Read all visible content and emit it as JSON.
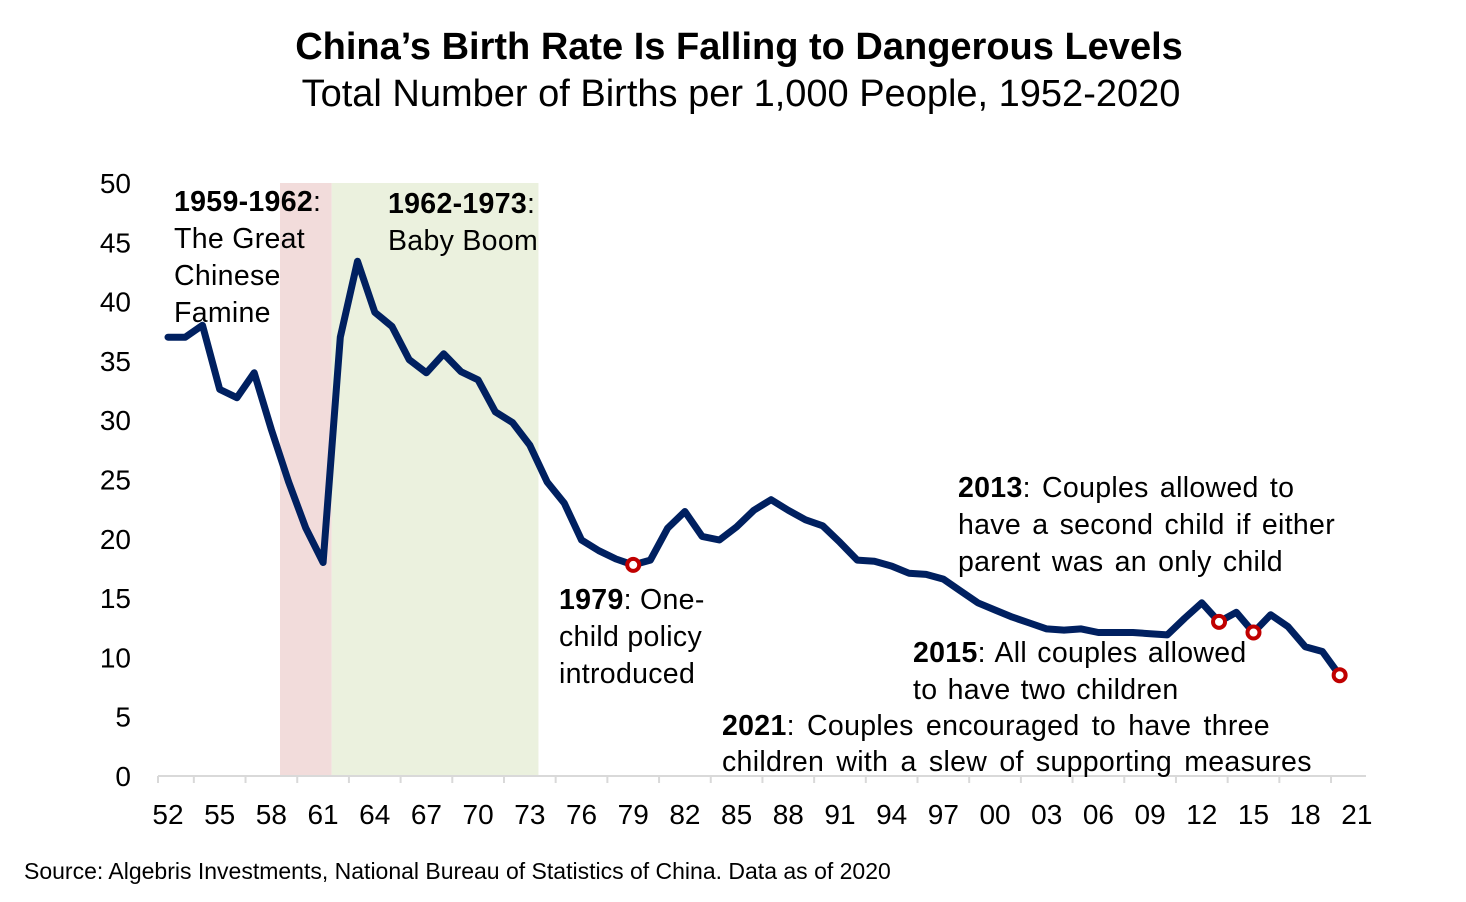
{
  "chart_data": {
    "type": "line",
    "title": "China’s Birth Rate Is Falling to Dangerous Levels",
    "subtitle": "Total Number of Births per 1,000 People, 1952-2020",
    "xlabel": "",
    "ylabel": "",
    "ylim": [
      0,
      50
    ],
    "yticks": [
      0,
      5,
      10,
      15,
      20,
      25,
      30,
      35,
      40,
      45,
      50
    ],
    "xlim": [
      1952,
      2021
    ],
    "xtick_years": [
      1952,
      1955,
      1958,
      1961,
      1964,
      1967,
      1970,
      1973,
      1976,
      1979,
      1982,
      1985,
      1988,
      1991,
      1994,
      1997,
      2000,
      2003,
      2006,
      2009,
      2012,
      2015,
      2018,
      2021
    ],
    "xtick_labels": [
      "52",
      "55",
      "58",
      "61",
      "64",
      "67",
      "70",
      "73",
      "76",
      "79",
      "82",
      "85",
      "88",
      "91",
      "94",
      "97",
      "00",
      "03",
      "06",
      "09",
      "12",
      "15",
      "18",
      "21"
    ],
    "grid": false,
    "line_color": "#002060",
    "series": [
      {
        "x": [
          1952,
          1953,
          1954,
          1955,
          1956,
          1957,
          1958,
          1959,
          1960,
          1961,
          1962,
          1963,
          1964,
          1965,
          1966,
          1967,
          1968,
          1969,
          1970,
          1971,
          1972,
          1973,
          1974,
          1975,
          1976,
          1977,
          1978,
          1979,
          1980,
          1981,
          1982,
          1983,
          1984,
          1985,
          1986,
          1987,
          1988,
          1989,
          1990,
          1991,
          1992,
          1993,
          1994,
          1995,
          1996,
          1997,
          1998,
          1999,
          2000,
          2001,
          2002,
          2003,
          2004,
          2005,
          2006,
          2007,
          2008,
          2009,
          2010,
          2011,
          2012,
          2013,
          2014,
          2015,
          2016,
          2017,
          2018,
          2019,
          2020
        ],
        "values": [
          37.0,
          37.0,
          38.0,
          32.6,
          31.9,
          34.0,
          29.2,
          24.8,
          20.9,
          18.0,
          37.0,
          43.4,
          39.1,
          37.9,
          35.1,
          34.0,
          35.6,
          34.1,
          33.4,
          30.7,
          29.8,
          27.9,
          24.8,
          23.0,
          19.9,
          19.0,
          18.3,
          17.8,
          18.2,
          20.9,
          22.3,
          20.2,
          19.9,
          21.0,
          22.4,
          23.3,
          22.4,
          21.6,
          21.1,
          19.7,
          18.2,
          18.1,
          17.7,
          17.1,
          17.0,
          16.6,
          15.6,
          14.6,
          14.0,
          13.4,
          12.9,
          12.4,
          12.3,
          12.4,
          12.1,
          12.1,
          12.1,
          12.0,
          11.9,
          13.3,
          14.6,
          13.0,
          13.8,
          12.1,
          13.6,
          12.6,
          10.9,
          10.5,
          8.5
        ]
      }
    ],
    "highlight_markers": {
      "years": [
        1979,
        2013,
        2015,
        2020
      ],
      "color": "#c00000"
    },
    "shaded_periods": [
      {
        "start": 1959,
        "end": 1961,
        "color": "#f2dcdb"
      },
      {
        "start": 1962,
        "end": 1973,
        "color": "#ebf1de"
      }
    ],
    "annotations": [
      {
        "bold": "1959-1962",
        "lines": [
          ":",
          "The Great",
          "Chinese",
          "Famine"
        ]
      },
      {
        "bold": "1962-1973",
        "lines": [
          ":",
          "Baby Boom"
        ]
      },
      {
        "bold": "1979",
        "lines": [
          ": One-",
          "child policy",
          "introduced"
        ]
      },
      {
        "bold": "2013",
        "lines": [
          ": Couples allowed to",
          "have a second child if either",
          "parent was an only child"
        ]
      },
      {
        "bold": "2015",
        "lines": [
          ": All couples allowed",
          "to have two children"
        ]
      },
      {
        "bold": "2021",
        "lines": [
          ": Couples encouraged to have three",
          "children with a slew of supporting measures"
        ]
      }
    ]
  },
  "source": "Source: Algebris Investments, National Bureau of Statistics of China. Data as of 2020"
}
